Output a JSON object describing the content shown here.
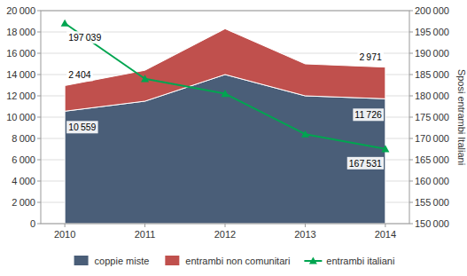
{
  "chart_data": {
    "type": "area",
    "stacked": true,
    "x": [
      2010,
      2011,
      2012,
      2013,
      2014
    ],
    "xlim": [
      2009.7,
      2014.3
    ],
    "xticks": [
      2010,
      2011,
      2012,
      2013,
      2014
    ],
    "ylim": [
      0,
      20000
    ],
    "yticks": [
      0,
      {
        "value": 2000,
        "label": "2 000"
      },
      {
        "value": 4000,
        "label": "4 000"
      },
      {
        "value": 6000,
        "label": "6 000"
      },
      {
        "value": 8000,
        "label": "8 000"
      },
      {
        "value": 10000,
        "label": "10 000"
      },
      {
        "value": 12000,
        "label": "12 000"
      },
      {
        "value": 14000,
        "label": "14 000"
      },
      {
        "value": 16000,
        "label": "16 000"
      },
      {
        "value": 18000,
        "label": "18 000"
      },
      {
        "value": 20000,
        "label": "20 000"
      }
    ],
    "y2lim": [
      150000,
      200000
    ],
    "y2ticks": [
      {
        "value": 150000,
        "label": "150 000"
      },
      {
        "value": 155000,
        "label": "155 000"
      },
      {
        "value": 160000,
        "label": "160 000"
      },
      {
        "value": 165000,
        "label": "165 000"
      },
      {
        "value": 170000,
        "label": "170 000"
      },
      {
        "value": 175000,
        "label": "175 000"
      },
      {
        "value": 180000,
        "label": "180 000"
      },
      {
        "value": 185000,
        "label": "185 000"
      },
      {
        "value": 190000,
        "label": "190 000"
      },
      {
        "value": 195000,
        "label": "195 000"
      },
      {
        "value": 200000,
        "label": "200 000"
      }
    ],
    "y2label": "Sposi entrambi Italiani",
    "grid": true,
    "legend": "bottom",
    "data_labels": true,
    "series": [
      {
        "name": "coppie miste",
        "type": "area",
        "color": "#4a5e78",
        "values": [
          10559,
          11500,
          14000,
          12000,
          11726
        ],
        "value_labels": [
          "10 559",
          null,
          null,
          null,
          "11 726"
        ]
      },
      {
        "name": "entrambi non comunitari",
        "type": "area",
        "color": "#c0504d",
        "values": [
          2404,
          2900,
          4300,
          3000,
          2971
        ],
        "value_labels": [
          "2 404",
          null,
          null,
          null,
          "2 971"
        ]
      },
      {
        "name": "entrambi italiani",
        "type": "line",
        "axis": "y2",
        "marker": "triangle",
        "color": "#00a550",
        "values": [
          197039,
          184000,
          180500,
          171000,
          167531
        ],
        "value_labels": [
          "197 039",
          null,
          null,
          null,
          "167 531"
        ]
      }
    ]
  }
}
